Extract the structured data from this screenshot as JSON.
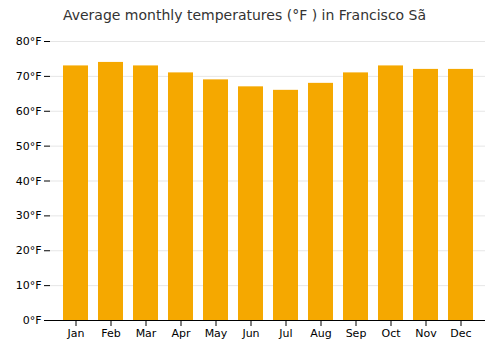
{
  "chart_data": {
    "type": "bar",
    "title": "Average monthly temperatures (°F ) in Francisco Sã",
    "categories": [
      "Jan",
      "Feb",
      "Mar",
      "Apr",
      "May",
      "Jun",
      "Jul",
      "Aug",
      "Sep",
      "Oct",
      "Nov",
      "Dec"
    ],
    "values": [
      73,
      74,
      73,
      71,
      69,
      67,
      66,
      68,
      71,
      73,
      72,
      72
    ],
    "color": "#F5A800",
    "ylim": [
      0,
      80
    ],
    "yticks": [
      {
        "value": 0,
        "label": "0°F"
      },
      {
        "value": 10,
        "label": "10°F"
      },
      {
        "value": 20,
        "label": "20°F"
      },
      {
        "value": 30,
        "label": "30°F"
      },
      {
        "value": 40,
        "label": "40°F"
      },
      {
        "value": 50,
        "label": "50°F"
      },
      {
        "value": 60,
        "label": "60°F"
      },
      {
        "value": 70,
        "label": "70°F"
      },
      {
        "value": 80,
        "label": "80°F"
      }
    ],
    "grid": true
  }
}
